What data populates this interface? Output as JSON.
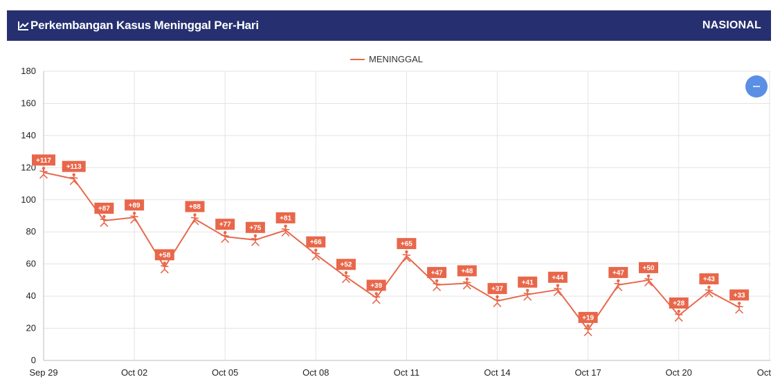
{
  "header": {
    "title": "Perkembangan Kasus Meninggal Per-Hari",
    "title_icon": "line-chart-icon",
    "region": "NASIONAL",
    "background": "#263070"
  },
  "zoom_button": {
    "icon": "minus-icon",
    "color": "#5b8fe6"
  },
  "chart_data": {
    "type": "line",
    "title": "",
    "xlabel": "",
    "ylabel": "",
    "legend": {
      "placement": "top-center",
      "entries": [
        "MENINGGAL"
      ]
    },
    "grid": true,
    "ylim": [
      0,
      180
    ],
    "y_ticks": [
      0,
      20,
      40,
      60,
      80,
      100,
      120,
      140,
      160,
      180
    ],
    "x_ticks": [
      "Sep 29",
      "Oct 02",
      "Oct 05",
      "Oct 08",
      "Oct 11",
      "Oct 14",
      "Oct 17",
      "Oct 20",
      "Oct"
    ],
    "x_tick_dates": [
      "2020-09-29",
      "2020-10-02",
      "2020-10-05",
      "2020-10-08",
      "2020-10-11",
      "2020-10-14",
      "2020-10-17",
      "2020-10-20",
      "2020-10-23"
    ],
    "series": [
      {
        "name": "MENINGGAL",
        "color": "#e8674a",
        "x": [
          "2020-09-29",
          "2020-09-30",
          "2020-10-01",
          "2020-10-02",
          "2020-10-03",
          "2020-10-04",
          "2020-10-05",
          "2020-10-06",
          "2020-10-07",
          "2020-10-08",
          "2020-10-09",
          "2020-10-10",
          "2020-10-11",
          "2020-10-12",
          "2020-10-13",
          "2020-10-14",
          "2020-10-15",
          "2020-10-16",
          "2020-10-17",
          "2020-10-18",
          "2020-10-19",
          "2020-10-20",
          "2020-10-21",
          "2020-10-22"
        ],
        "values": [
          117,
          113,
          87,
          89,
          58,
          88,
          77,
          75,
          81,
          66,
          52,
          39,
          65,
          47,
          48,
          37,
          41,
          44,
          19,
          47,
          50,
          28,
          43,
          33
        ],
        "labels": [
          "+117",
          "+113",
          "+87",
          "+89",
          "+58",
          "+88",
          "+77",
          "+75",
          "+81",
          "+66",
          "+52",
          "+39",
          "+65",
          "+47",
          "+48",
          "+37",
          "+41",
          "+44",
          "+19",
          "+47",
          "+50",
          "+28",
          "+43",
          "+33"
        ]
      }
    ]
  }
}
